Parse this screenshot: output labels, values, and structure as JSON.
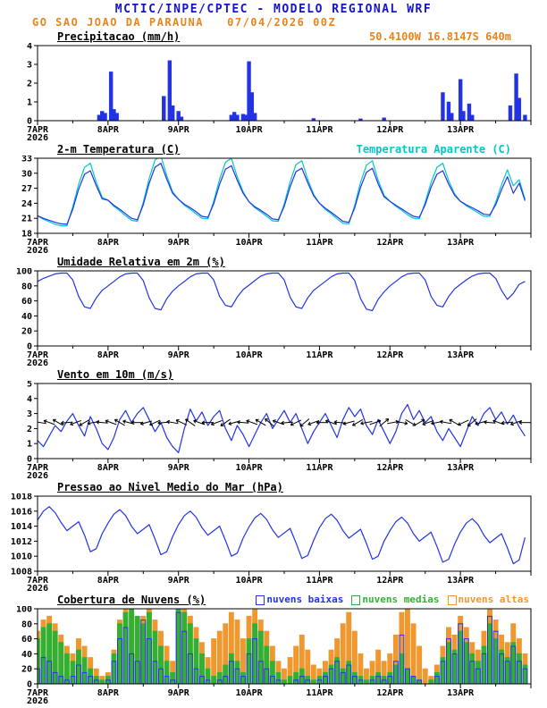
{
  "header": {
    "title": "MCTIC/INPE/CPTEC - MODELO REGIONAL WRF",
    "subtitle": "GO SAO JOAO DA PARAUNA   07/04/2026 00Z"
  },
  "colors": {
    "header_blue": "#1414cc",
    "accent_orange": "#e8851e",
    "line_blue": "#2233e6",
    "apparent_cyan": "#00c8c8",
    "clouds_low": "#2233e6",
    "clouds_mid": "#33b033",
    "clouds_high": "#ef9830",
    "axis_black": "#000000"
  },
  "x_axis": {
    "start_hour": 0,
    "end_hour": 168,
    "day_labels": [
      "7APR",
      "8APR",
      "9APR",
      "10APR",
      "11APR",
      "12APR",
      "13APR"
    ],
    "year_label": "2026",
    "major_tick_hours": 24,
    "minor_tick_hours": 12
  },
  "chart_data": [
    {
      "type": "bar",
      "title": "Precipitacao (mm/h)",
      "right_label": "50.4100W 16.8147S 640m",
      "right_label_color": "#e8851e",
      "ylim": [
        0,
        4
      ],
      "yticks": [
        0,
        1,
        2,
        3,
        4
      ],
      "series": [
        {
          "name": "precipitacao",
          "kind": "bar",
          "color": "#2233e6",
          "bar_width_h": 1.2,
          "points": [
            [
              21,
              0.3
            ],
            [
              22,
              0.5
            ],
            [
              23,
              0.4
            ],
            [
              25,
              2.6
            ],
            [
              26,
              0.6
            ],
            [
              27,
              0.4
            ],
            [
              43,
              1.3
            ],
            [
              45,
              3.2
            ],
            [
              46,
              0.8
            ],
            [
              48,
              0.5
            ],
            [
              49,
              0.2
            ],
            [
              66,
              0.3
            ],
            [
              67,
              0.45
            ],
            [
              68,
              0.3
            ],
            [
              70,
              0.35
            ],
            [
              71,
              0.3
            ],
            [
              72,
              3.15
            ],
            [
              73,
              1.5
            ],
            [
              74,
              0.4
            ],
            [
              94,
              0.12
            ],
            [
              110,
              0.1
            ],
            [
              118,
              0.15
            ],
            [
              138,
              1.5
            ],
            [
              140,
              1.0
            ],
            [
              141,
              0.4
            ],
            [
              144,
              2.2
            ],
            [
              145,
              0.5
            ],
            [
              147,
              0.9
            ],
            [
              148,
              0.3
            ],
            [
              161,
              0.8
            ],
            [
              163,
              2.5
            ],
            [
              164,
              1.2
            ],
            [
              166,
              0.3
            ]
          ]
        }
      ]
    },
    {
      "type": "line",
      "title": "2-m Temperatura (C)",
      "right_label": "Temperatura Aparente (C)",
      "right_label_color": "#00c8c8",
      "ylim": [
        18,
        33
      ],
      "yticks": [
        18,
        21,
        24,
        27,
        30,
        33
      ],
      "series": [
        {
          "name": "temperatura-aparente",
          "kind": "line",
          "color": "#00c8c8",
          "x_start": 0,
          "x_step": 2,
          "values": [
            21.5,
            20.8,
            20.3,
            19.8,
            19.5,
            19.5,
            23.3,
            27.8,
            31.2,
            32.0,
            28.2,
            25.2,
            24.6,
            23.4,
            22.5,
            21.5,
            20.6,
            20.4,
            24.2,
            29.0,
            32.6,
            33.5,
            29.5,
            26.3,
            24.8,
            23.6,
            22.8,
            21.9,
            21.0,
            20.9,
            24.4,
            28.8,
            32.2,
            33.0,
            29.3,
            26.3,
            24.3,
            23.1,
            22.3,
            21.4,
            20.5,
            20.4,
            23.9,
            28.3,
            31.7,
            32.5,
            28.8,
            25.8,
            24.0,
            22.8,
            21.9,
            20.9,
            20.0,
            19.9,
            23.6,
            28.2,
            31.6,
            32.5,
            28.6,
            25.6,
            24.4,
            23.4,
            22.6,
            21.7,
            21.0,
            20.9,
            24.2,
            28.2,
            31.2,
            32.0,
            28.5,
            25.9,
            24.4,
            23.5,
            22.8,
            22.1,
            21.4,
            21.4,
            24.2,
            27.7,
            30.7,
            27.5,
            28.7,
            24.8
          ]
        },
        {
          "name": "temperatura-2m",
          "kind": "line",
          "color": "#2233e6",
          "x_start": 0,
          "x_step": 2,
          "values": [
            21.5,
            21.0,
            20.6,
            20.2,
            19.9,
            19.8,
            22.8,
            26.8,
            29.8,
            30.5,
            27.5,
            24.9,
            24.6,
            23.6,
            22.8,
            21.9,
            21.0,
            20.7,
            23.7,
            28.0,
            31.2,
            32.0,
            28.8,
            26.0,
            24.8,
            23.8,
            23.1,
            22.3,
            21.4,
            21.2,
            23.9,
            27.8,
            30.8,
            31.5,
            28.6,
            26.0,
            24.3,
            23.3,
            22.6,
            21.8,
            20.9,
            20.7,
            23.4,
            27.3,
            30.3,
            31.0,
            28.1,
            25.5,
            24.0,
            23.0,
            22.2,
            21.3,
            20.4,
            20.2,
            23.1,
            27.2,
            30.2,
            31.0,
            27.9,
            25.3,
            24.4,
            23.6,
            22.9,
            22.1,
            21.4,
            21.2,
            23.7,
            27.2,
            29.8,
            30.5,
            27.8,
            25.6,
            24.4,
            23.7,
            23.1,
            22.5,
            21.8,
            21.7,
            23.7,
            26.7,
            29.3,
            26.0,
            28.0,
            24.5
          ]
        }
      ]
    },
    {
      "type": "line",
      "title": "Umidade Relativa em 2m (%)",
      "ylim": [
        0,
        100
      ],
      "yticks": [
        0,
        20,
        40,
        60,
        80,
        100
      ],
      "series": [
        {
          "name": "umidade-relativa",
          "kind": "line",
          "color": "#2233e6",
          "x_start": 0,
          "x_step": 2,
          "values": [
            86,
            90,
            93,
            96,
            97,
            97,
            88,
            66,
            52,
            50,
            64,
            74,
            80,
            86,
            92,
            96,
            97,
            97,
            87,
            64,
            50,
            48,
            63,
            73,
            80,
            86,
            92,
            96,
            97,
            97,
            88,
            66,
            54,
            52,
            65,
            75,
            81,
            87,
            93,
            96,
            97,
            97,
            88,
            65,
            52,
            50,
            64,
            74,
            80,
            86,
            92,
            96,
            97,
            97,
            87,
            63,
            49,
            47,
            62,
            72,
            80,
            86,
            92,
            96,
            97,
            97,
            88,
            66,
            54,
            52,
            66,
            76,
            82,
            88,
            93,
            96,
            97,
            97,
            90,
            74,
            62,
            70,
            82,
            86
          ]
        }
      ]
    },
    {
      "type": "line",
      "title": "Vento em 10m (m/s)",
      "ylim": [
        0,
        5
      ],
      "yticks": [
        0,
        1,
        2,
        3,
        4,
        5
      ],
      "series": [
        {
          "name": "vento-10m",
          "kind": "line",
          "color": "#2233e6",
          "x_start": 0,
          "x_step": 2,
          "values": [
            1.2,
            0.8,
            1.5,
            2.2,
            1.8,
            2.5,
            3.0,
            2.2,
            1.5,
            2.8,
            2.0,
            1.0,
            0.6,
            1.4,
            2.6,
            3.2,
            2.4,
            3.0,
            3.4,
            2.6,
            1.8,
            2.4,
            1.4,
            0.8,
            0.4,
            2.0,
            3.3,
            2.5,
            3.1,
            2.2,
            2.8,
            3.2,
            2.0,
            1.2,
            2.2,
            1.6,
            0.8,
            1.6,
            2.4,
            3.0,
            2.0,
            2.6,
            3.2,
            2.4,
            3.0,
            2.0,
            1.0,
            1.8,
            2.4,
            3.0,
            2.2,
            1.4,
            2.6,
            3.4,
            2.8,
            3.3,
            2.2,
            1.6,
            2.6,
            1.8,
            1.0,
            1.8,
            3.0,
            3.6,
            2.6,
            3.2,
            2.4,
            2.8,
            1.8,
            1.2,
            2.0,
            1.4,
            0.8,
            1.8,
            2.8,
            2.2,
            3.0,
            3.4,
            2.6,
            3.1,
            2.3,
            2.9,
            2.1,
            1.5
          ]
        }
      ],
      "barbs": {
        "name": "wind-direction-arrows",
        "y": 2.4,
        "hours": [
          1,
          4,
          7,
          10,
          13,
          16,
          19,
          22,
          25,
          28,
          31,
          34,
          37,
          40,
          43,
          46,
          49,
          52,
          55,
          58,
          61,
          64,
          67,
          70,
          73,
          76,
          79,
          82,
          85,
          88,
          91,
          94,
          97,
          100,
          103,
          106,
          109,
          112,
          115,
          118,
          121,
          124,
          127,
          130,
          133,
          136,
          139,
          142,
          145,
          148,
          151,
          154,
          157,
          160,
          163,
          166
        ],
        "angles": [
          170,
          160,
          150,
          185,
          200,
          210,
          190,
          175,
          160,
          150,
          165,
          180,
          195,
          205,
          185,
          170,
          155,
          145,
          160,
          180,
          200,
          215,
          195,
          175,
          160,
          150,
          140,
          160,
          185,
          205,
          220,
          200,
          180,
          160,
          175,
          195,
          210,
          190,
          20,
          40,
          10,
          350,
          330,
          30,
          200,
          190,
          170,
          150,
          205,
          220,
          195,
          175,
          160,
          185,
          200,
          180
        ]
      }
    },
    {
      "type": "line",
      "title": "Pressao ao Nivel Medio do Mar (hPa)",
      "ylim": [
        1008,
        1018
      ],
      "yticks": [
        1008,
        1010,
        1012,
        1014,
        1016,
        1018
      ],
      "series": [
        {
          "name": "pressao-nivel-mar",
          "kind": "line",
          "color": "#2233e6",
          "x_start": 0,
          "x_step": 2,
          "values": [
            1014.8,
            1016.0,
            1016.6,
            1015.8,
            1014.5,
            1013.4,
            1014.0,
            1014.6,
            1012.8,
            1010.6,
            1011.0,
            1013.0,
            1014.4,
            1015.6,
            1016.2,
            1015.4,
            1014.0,
            1013.0,
            1013.6,
            1014.2,
            1012.3,
            1010.2,
            1010.6,
            1012.6,
            1014.2,
            1015.4,
            1016.0,
            1015.2,
            1013.8,
            1012.8,
            1013.4,
            1014.0,
            1012.1,
            1010.0,
            1010.4,
            1012.4,
            1013.9,
            1015.1,
            1015.7,
            1014.9,
            1013.5,
            1012.5,
            1013.1,
            1013.7,
            1011.8,
            1009.7,
            1010.1,
            1012.1,
            1013.8,
            1015.0,
            1015.6,
            1014.8,
            1013.4,
            1012.4,
            1013.0,
            1013.6,
            1011.7,
            1009.6,
            1010.0,
            1012.0,
            1013.4,
            1014.6,
            1015.2,
            1014.4,
            1013.0,
            1012.0,
            1012.6,
            1013.2,
            1011.3,
            1009.2,
            1009.6,
            1011.6,
            1013.2,
            1014.4,
            1015.0,
            1014.2,
            1012.8,
            1011.8,
            1012.4,
            1013.0,
            1011.1,
            1009.0,
            1009.5,
            1012.5
          ]
        }
      ]
    },
    {
      "type": "bar",
      "title": "Cobertura de Nuvens (%)",
      "ylim": [
        0,
        100
      ],
      "yticks": [
        0,
        20,
        40,
        60,
        80,
        100
      ],
      "legend": [
        {
          "label": "nuvens baixas",
          "color": "#2233e6"
        },
        {
          "label": "nuvens medias",
          "color": "#33b033"
        },
        {
          "label": "nuvens altas",
          "color": "#ef9830"
        }
      ],
      "series": [
        {
          "name": "nuvens-altas",
          "kind": "bar_series",
          "color": "#ef9830",
          "x_start": 0,
          "x_step": 2,
          "bar_width_h": 1.5,
          "values": [
            70,
            85,
            90,
            80,
            65,
            50,
            40,
            60,
            50,
            35,
            20,
            10,
            15,
            45,
            85,
            100,
            95,
            85,
            90,
            100,
            85,
            70,
            50,
            30,
            100,
            100,
            90,
            75,
            55,
            35,
            60,
            70,
            80,
            95,
            85,
            60,
            90,
            100,
            85,
            70,
            50,
            30,
            20,
            35,
            50,
            65,
            45,
            25,
            20,
            30,
            45,
            60,
            80,
            95,
            70,
            40,
            20,
            30,
            45,
            30,
            40,
            65,
            95,
            100,
            80,
            50,
            20,
            10,
            25,
            50,
            75,
            65,
            90,
            75,
            55,
            45,
            70,
            100,
            85,
            65,
            55,
            80,
            60,
            40
          ]
        },
        {
          "name": "nuvens-medias",
          "kind": "bar_series",
          "color": "#33b033",
          "x_start": 0,
          "x_step": 2,
          "bar_width_h": 1.5,
          "values": [
            60,
            75,
            80,
            70,
            55,
            40,
            30,
            45,
            35,
            20,
            10,
            5,
            10,
            40,
            80,
            95,
            100,
            90,
            80,
            95,
            70,
            50,
            30,
            15,
            100,
            95,
            80,
            60,
            40,
            20,
            10,
            15,
            25,
            40,
            30,
            15,
            60,
            80,
            70,
            50,
            30,
            15,
            5,
            10,
            15,
            20,
            10,
            5,
            10,
            15,
            25,
            35,
            20,
            30,
            15,
            10,
            5,
            10,
            15,
            10,
            15,
            25,
            40,
            20,
            10,
            5,
            0,
            5,
            15,
            35,
            55,
            45,
            70,
            55,
            40,
            30,
            50,
            80,
            60,
            45,
            35,
            55,
            40,
            25
          ]
        },
        {
          "name": "nuvens-baixas",
          "kind": "bar_series",
          "color": "#2233e6",
          "fill": "none",
          "x_start": 0,
          "x_step": 2,
          "bar_width_h": 1.5,
          "values": [
            20,
            35,
            30,
            15,
            10,
            5,
            10,
            25,
            15,
            10,
            5,
            0,
            5,
            30,
            60,
            75,
            40,
            30,
            85,
            60,
            30,
            20,
            10,
            5,
            95,
            70,
            40,
            20,
            10,
            5,
            0,
            5,
            10,
            30,
            20,
            10,
            40,
            60,
            30,
            20,
            10,
            5,
            0,
            0,
            5,
            10,
            5,
            0,
            5,
            10,
            20,
            30,
            15,
            25,
            10,
            5,
            0,
            5,
            10,
            5,
            10,
            30,
            65,
            20,
            10,
            5,
            0,
            0,
            10,
            30,
            60,
            40,
            80,
            60,
            30,
            20,
            40,
            90,
            70,
            40,
            30,
            50,
            30,
            20
          ]
        }
      ]
    }
  ]
}
